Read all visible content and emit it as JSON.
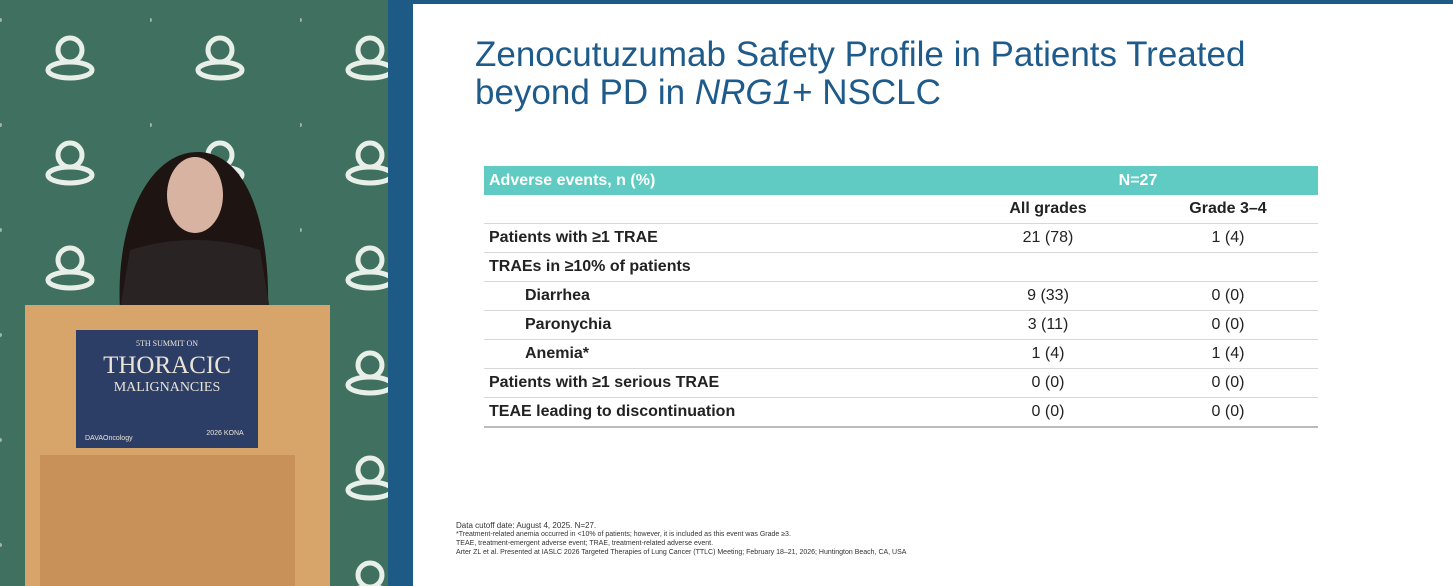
{
  "stage": {
    "sign": {
      "line1": "5TH SUMMIT ON",
      "line2": "THORACIC",
      "line3": "MALIGNANCIES",
      "logo_left": "DAVAOncology",
      "logo_right": "2026 KONA"
    }
  },
  "slide": {
    "title": {
      "line1": "Zenocutuzumab Safety Profile in Patients Treated",
      "line2": [
        "beyond PD in ",
        "NRG1",
        "+ NSCLC"
      ]
    },
    "table": {
      "header": [
        "Adverse events, n (%)",
        "N=27"
      ],
      "columns": [
        "All grades",
        "Grade 3–4"
      ],
      "rows": [
        {
          "label": "Patients with ≥1 TRAE",
          "indent": false,
          "cells": [
            "21 (78)",
            "1 (4)"
          ]
        },
        {
          "label": "TRAEs in ≥10% of patients",
          "indent": false,
          "cells": []
        },
        {
          "label": "Diarrhea",
          "indent": true,
          "cells": [
            "9 (33)",
            "0 (0)"
          ]
        },
        {
          "label": "Paronychia",
          "indent": true,
          "cells": [
            "3 (11)",
            "0 (0)"
          ]
        },
        {
          "label": "Anemia*",
          "indent": true,
          "cells": [
            "1 (4)",
            "1 (4)"
          ]
        },
        {
          "label": "Patients with ≥1 serious TRAE",
          "indent": false,
          "cells": [
            "0 (0)",
            "0 (0)"
          ]
        },
        {
          "label": "TEAE leading to discontinuation",
          "indent": false,
          "cells": [
            "0 (0)",
            "0 (0)"
          ]
        }
      ]
    },
    "footnotes": [
      "Data cutoff date: August 4, 2025. N=27.",
      "*Treatment-related anemia occurred in <10% of patients; however, it is included as this event was Grade ≥3.",
      "TEAE, treatment-emergent adverse event; TRAE, treatment-related adverse event.",
      "Arter ZL et al. Presented at IASLC 2026 Targeted Therapies of Lung Cancer (TTLC) Meeting; February 18–21, 2026; Huntington Beach, CA, USA"
    ]
  }
}
